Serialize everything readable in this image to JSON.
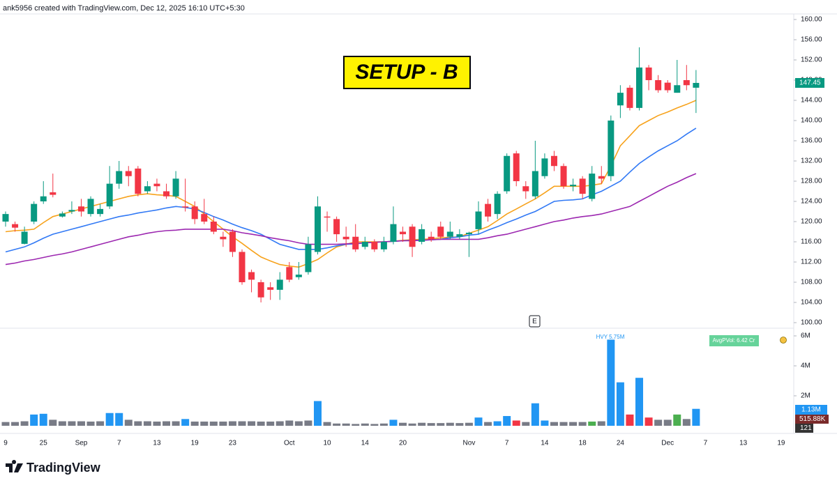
{
  "header": "ank5956 created with TradingView.com, Dec 12, 2025 16:10 UTC+5:30",
  "footer": "TradingView",
  "chart_data": {
    "type": "candlestick",
    "title": "SETUP - B",
    "categories": [
      "9",
      null,
      null,
      null,
      "25",
      null,
      null,
      null,
      "Sep",
      null,
      null,
      null,
      "7",
      null,
      null,
      null,
      "13",
      null,
      null,
      null,
      "19",
      null,
      null,
      null,
      "23",
      null,
      null,
      null,
      null,
      null,
      "Oct",
      null,
      null,
      null,
      "10",
      null,
      null,
      null,
      "14",
      null,
      null,
      null,
      "20",
      null,
      null,
      null,
      null,
      null,
      null,
      "Nov",
      null,
      null,
      null,
      "7",
      null,
      null,
      null,
      "14",
      null,
      null,
      null,
      "18",
      null,
      null,
      null,
      "24",
      null,
      null,
      null,
      null,
      "Dec",
      null,
      null,
      null,
      "7",
      null,
      null,
      null,
      "13",
      null,
      null,
      null,
      "19"
    ],
    "open": [
      120,
      119.5,
      115.6,
      120,
      124,
      125.8,
      121,
      122,
      123,
      121.5,
      121.5,
      123,
      127.5,
      130,
      130.5,
      126,
      127.5,
      126,
      125,
      123,
      123,
      121.5,
      120,
      117,
      118,
      114,
      110,
      108,
      107,
      106.5,
      111,
      109,
      110,
      114,
      121,
      120.5,
      117,
      117,
      115,
      116,
      114.5,
      116,
      118,
      119,
      116,
      117,
      119,
      117,
      117,
      117.5,
      118.5,
      123.5,
      121.5,
      126,
      133.5,
      127,
      125,
      129,
      133,
      131,
      127,
      128.5,
      124.5,
      129,
      129,
      143,
      146.5,
      142.5,
      150.5,
      148,
      147.5,
      145.5,
      148,
      146.5,
      null,
      null,
      null,
      null,
      null,
      null,
      null,
      null,
      null
    ],
    "high": [
      122,
      120,
      119,
      124,
      128,
      129.5,
      122,
      124,
      124.5,
      125,
      123.5,
      131,
      132,
      131,
      131,
      128,
      128.5,
      127.5,
      130,
      128.5,
      124,
      124.5,
      121,
      118,
      118.5,
      114.5,
      110.5,
      108.5,
      108,
      110,
      112,
      112,
      117,
      125,
      122,
      121,
      119,
      119.5,
      117,
      116.5,
      117,
      123,
      119,
      119.5,
      119.5,
      118,
      120,
      120,
      118.5,
      118,
      124,
      124.5,
      126,
      133.5,
      134,
      128,
      136,
      133.5,
      134,
      131.5,
      128.5,
      129,
      131,
      131,
      141,
      147,
      147,
      154.5,
      151,
      149,
      148,
      152,
      151,
      150,
      null,
      null,
      null,
      null,
      null,
      null,
      null,
      null,
      null
    ],
    "low": [
      119,
      118,
      115.5,
      119.5,
      123.5,
      124.8,
      120.8,
      121.5,
      121,
      121,
      121,
      122.5,
      126.5,
      127,
      125,
      125.5,
      126,
      124.5,
      124.5,
      122,
      119.5,
      119.5,
      117.5,
      115,
      113,
      107.5,
      106,
      104,
      104.5,
      104.5,
      108,
      108.5,
      109.5,
      113.5,
      118,
      116,
      115,
      114,
      114.5,
      114,
      114,
      115.5,
      116,
      113,
      115.5,
      116,
      116.5,
      116.5,
      116.5,
      113,
      117.5,
      120,
      120.5,
      125.5,
      127,
      124.5,
      124.5,
      128.5,
      130,
      126.5,
      126,
      124.5,
      124,
      127.5,
      128,
      140.5,
      142,
      142,
      146,
      145.5,
      145.5,
      145.5,
      146,
      141.5,
      null,
      null,
      null,
      null,
      null,
      null,
      null,
      null,
      null
    ],
    "close": [
      121.5,
      118.8,
      118,
      123.5,
      125,
      125.3,
      121.6,
      122.3,
      122,
      124.5,
      122.5,
      127.5,
      130,
      129,
      125.5,
      127,
      127,
      125,
      128.5,
      122.8,
      120.5,
      120,
      118,
      116.5,
      114,
      108,
      108.5,
      105,
      106.5,
      108.5,
      108.5,
      109.5,
      115.5,
      123,
      120.8,
      117.5,
      116.5,
      114.5,
      116,
      114.5,
      116,
      119.5,
      117.5,
      115,
      118.5,
      116.5,
      117,
      118,
      117.5,
      117.8,
      122,
      121,
      125.5,
      133,
      128,
      126,
      130,
      132.5,
      131,
      127,
      127.3,
      125.5,
      129.5,
      128.5,
      140,
      145.5,
      142.5,
      150.5,
      148,
      146,
      146,
      147,
      147,
      147.45,
      null,
      null,
      null,
      null,
      null,
      null,
      null,
      null,
      null
    ],
    "up_color": "#089981",
    "down_color": "#f23645",
    "series": [
      {
        "color": "#f7a21b",
        "values": [
          118,
          118.2,
          118.3,
          118.5,
          119.8,
          121,
          121.5,
          122,
          122.5,
          123,
          123.5,
          124,
          124.5,
          125,
          125.3,
          125.5,
          125.3,
          125.2,
          125,
          124,
          123,
          121.5,
          120,
          118.5,
          117,
          115.7,
          114.3,
          113,
          112.2,
          111.5,
          111.2,
          111,
          111.7,
          112.5,
          113.8,
          115,
          115.5,
          116,
          116,
          116,
          116,
          116.1,
          116.3,
          116.4,
          116.5,
          116.6,
          116.8,
          116.9,
          117,
          117.7,
          118.3,
          119,
          120.2,
          121.5,
          122.5,
          123.5,
          124.5,
          125.7,
          127,
          127,
          127,
          127,
          127.2,
          127.5,
          131,
          135,
          137,
          139,
          140,
          141,
          141.7,
          142.5,
          143.2,
          144,
          null,
          null,
          null,
          null,
          null,
          null,
          null,
          null,
          null
        ]
      },
      {
        "color": "#3179f5",
        "values": [
          114,
          114.5,
          115,
          115.8,
          116.7,
          117.5,
          118,
          118.5,
          119,
          119.5,
          120,
          120.5,
          121,
          121.3,
          121.7,
          122,
          122.3,
          122.7,
          123,
          122.8,
          122.5,
          121.8,
          121,
          120.3,
          119.5,
          118.8,
          118.2,
          117.5,
          116.5,
          115.5,
          115,
          114.5,
          114.5,
          114.5,
          114.8,
          115.2,
          115.5,
          115.6,
          115.8,
          115.9,
          116,
          116.1,
          116.2,
          116.3,
          116.3,
          116.4,
          116.5,
          116.8,
          117,
          117.3,
          117.5,
          118.3,
          119,
          119.8,
          120.5,
          121.3,
          122,
          123,
          124,
          124.2,
          124.3,
          124.5,
          125.3,
          126,
          127,
          128,
          129.8,
          131.5,
          132.8,
          134,
          135,
          136,
          137.3,
          138.5,
          null,
          null,
          null,
          null,
          null,
          null,
          null,
          null,
          null
        ]
      },
      {
        "color": "#9c27b0",
        "values": [
          111.5,
          111.8,
          112.2,
          112.5,
          112.9,
          113.3,
          113.6,
          114,
          114.5,
          115,
          115.5,
          116,
          116.5,
          117,
          117.3,
          117.7,
          118,
          118.2,
          118.3,
          118.5,
          118.5,
          118.5,
          118.5,
          118.5,
          118.2,
          117.8,
          117.5,
          117.2,
          116.8,
          116.5,
          116.2,
          115.8,
          115.5,
          115.5,
          115.5,
          115.5,
          115.6,
          115.7,
          115.8,
          115.9,
          116,
          116.1,
          116.2,
          116.2,
          116.3,
          116.4,
          116.5,
          116.5,
          116.5,
          116.5,
          116.5,
          116.8,
          117.2,
          117.5,
          118,
          118.5,
          119,
          119.5,
          120,
          120.3,
          120.7,
          121,
          121.2,
          121.5,
          122,
          122.5,
          123,
          124,
          125,
          126,
          127,
          127.8,
          128.7,
          129.5,
          null,
          null,
          null,
          null,
          null,
          null,
          null,
          null,
          null
        ]
      }
    ],
    "ylim": [
      100,
      160
    ],
    "yticks": [
      {
        "value": 100,
        "label": "100.00"
      },
      {
        "value": 104,
        "label": "104.00"
      },
      {
        "value": 108,
        "label": "108.00"
      },
      {
        "value": 112,
        "label": "112.00"
      },
      {
        "value": 116,
        "label": "116.00"
      },
      {
        "value": 120,
        "label": "120.00"
      },
      {
        "value": 124,
        "label": "124.00"
      },
      {
        "value": 128,
        "label": "128.00"
      },
      {
        "value": 132,
        "label": "132.00"
      },
      {
        "value": 136,
        "label": "136.00"
      },
      {
        "value": 140,
        "label": "140.00"
      },
      {
        "value": 144,
        "label": "144.00"
      },
      {
        "value": 148,
        "label": "148.00"
      },
      {
        "value": 152,
        "label": "152.00"
      },
      {
        "value": 156,
        "label": "156.00"
      },
      {
        "value": 160,
        "label": "160.00"
      }
    ],
    "grid": false,
    "volume": {
      "values": [
        250000,
        250000,
        300000,
        750000,
        800000,
        400000,
        300000,
        300000,
        300000,
        280000,
        300000,
        850000,
        850000,
        400000,
        300000,
        300000,
        280000,
        300000,
        300000,
        450000,
        280000,
        280000,
        280000,
        280000,
        300000,
        300000,
        300000,
        280000,
        280000,
        300000,
        350000,
        300000,
        350000,
        1650000,
        250000,
        150000,
        150000,
        120000,
        150000,
        120000,
        150000,
        400000,
        200000,
        150000,
        200000,
        180000,
        180000,
        200000,
        180000,
        200000,
        550000,
        250000,
        300000,
        650000,
        350000,
        250000,
        1500000,
        350000,
        250000,
        250000,
        250000,
        250000,
        280000,
        300000,
        5750000,
        2900000,
        750000,
        3200000,
        550000,
        400000,
        400000,
        750000,
        450000,
        1130000,
        null,
        null,
        null,
        null,
        null,
        null,
        null,
        null,
        null
      ],
      "colors": [
        "#787b86",
        "#787b86",
        "#787b86",
        "#2196f3",
        "#2196f3",
        "#787b86",
        "#787b86",
        "#787b86",
        "#787b86",
        "#787b86",
        "#787b86",
        "#2196f3",
        "#2196f3",
        "#787b86",
        "#787b86",
        "#787b86",
        "#787b86",
        "#787b86",
        "#787b86",
        "#2196f3",
        "#787b86",
        "#787b86",
        "#787b86",
        "#787b86",
        "#787b86",
        "#787b86",
        "#787b86",
        "#787b86",
        "#787b86",
        "#787b86",
        "#787b86",
        "#787b86",
        "#787b86",
        "#2196f3",
        "#787b86",
        "#787b86",
        "#787b86",
        "#787b86",
        "#787b86",
        "#787b86",
        "#787b86",
        "#2196f3",
        "#787b86",
        "#787b86",
        "#787b86",
        "#787b86",
        "#787b86",
        "#787b86",
        "#787b86",
        "#787b86",
        "#2196f3",
        "#787b86",
        "#2196f3",
        "#2196f3",
        "#f23645",
        "#787b86",
        "#2196f3",
        "#2196f3",
        "#787b86",
        "#787b86",
        "#787b86",
        "#787b86",
        "#4caf50",
        "#787b86",
        "#2196f3",
        "#2196f3",
        "#f23645",
        "#2196f3",
        "#f23645",
        "#787b86",
        "#787b86",
        "#4caf50",
        "#787b86",
        "#2196f3",
        null,
        null,
        null,
        null,
        null,
        null,
        null,
        null,
        null
      ],
      "ylim": [
        0,
        6000000
      ],
      "yticks": [
        {
          "value": 2000000,
          "label": "2M"
        },
        {
          "value": 4000000,
          "label": "4M"
        },
        {
          "value": 6000000,
          "label": "6M"
        }
      ]
    },
    "annotations": {
      "hvy": "HVY 5.75M",
      "avg_vol": "AvgPVol: 6.42 Cr",
      "last_volume": "1.13M",
      "volume_ma": "515.88K",
      "bar_count": "121",
      "event": "E"
    }
  }
}
